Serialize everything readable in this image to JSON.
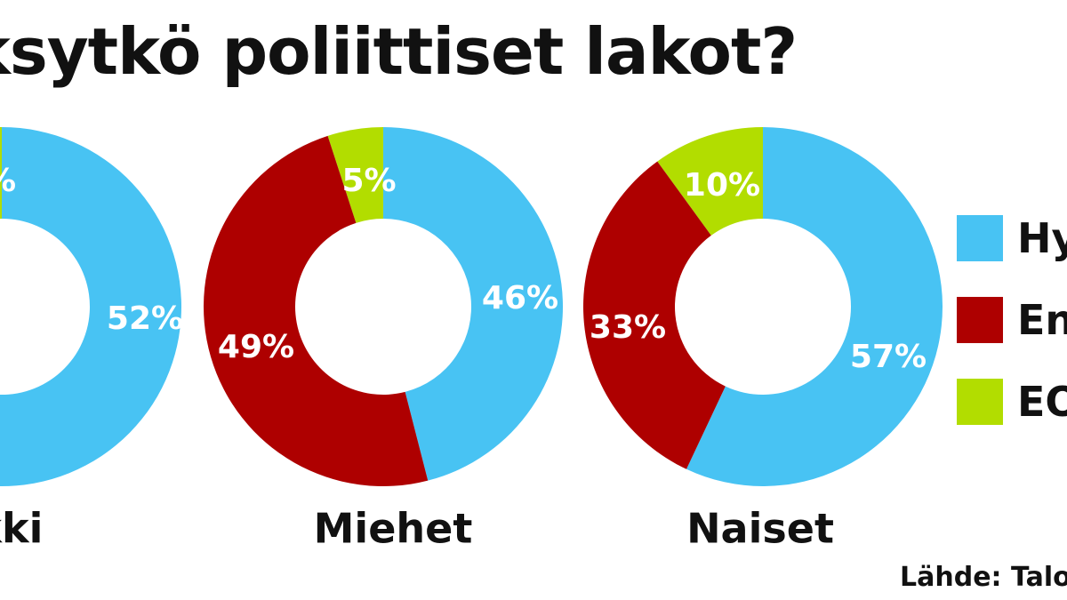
{
  "chart_data": {
    "type": "pie",
    "title": "ksytkö poliittiset lakot?",
    "categories": [
      "Hy",
      "En",
      "EO"
    ],
    "colors": {
      "Hy": "#48c3f3",
      "En": "#ae0000",
      "EO": "#b2dd00"
    },
    "series": [
      {
        "name": "ikki",
        "values": [
          52,
          null,
          null
        ],
        "labels": [
          "52%",
          "",
          "%"
        ]
      },
      {
        "name": "Miehet",
        "values": [
          46,
          49,
          5
        ],
        "labels": [
          "46%",
          "49%",
          "5%"
        ]
      },
      {
        "name": "Naiset",
        "values": [
          57,
          33,
          10
        ],
        "labels": [
          "57%",
          "33%",
          "10%"
        ]
      }
    ],
    "legend_position": "right"
  },
  "legend": {
    "items": [
      {
        "label": "Hy",
        "color": "#48c3f3"
      },
      {
        "label": "En",
        "color": "#ae0000"
      },
      {
        "label": "EO",
        "color": "#b2dd00"
      }
    ]
  },
  "source": "Lähde: Talo"
}
